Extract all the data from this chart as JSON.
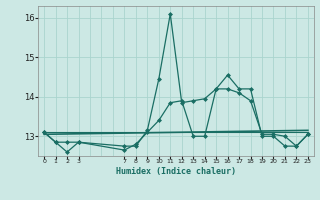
{
  "xlabel": "Humidex (Indice chaleur)",
  "background_color": "#cce8e4",
  "grid_color": "#aad4ce",
  "line_color": "#1a6e64",
  "ylim": [
    12.5,
    16.3
  ],
  "xlim": [
    -0.5,
    23.5
  ],
  "yticks": [
    13,
    14,
    15,
    16
  ],
  "xtick_positions": [
    0,
    1,
    2,
    3,
    7,
    8,
    9,
    10,
    11,
    12,
    13,
    14,
    15,
    16,
    17,
    18,
    19,
    20,
    21,
    22,
    23
  ],
  "xtick_labels": [
    "0",
    "1",
    "2",
    "3",
    "7",
    "8",
    "9",
    "10",
    "11",
    "12",
    "13",
    "14",
    "15",
    "16",
    "17",
    "18",
    "19",
    "20",
    "21",
    "22",
    "23"
  ],
  "series": [
    {
      "x": [
        0,
        1,
        2,
        3,
        7,
        8,
        9,
        10,
        11,
        12,
        13,
        14,
        15,
        16,
        17,
        18,
        19,
        20,
        21,
        22,
        23
      ],
      "y": [
        13.1,
        12.85,
        12.85,
        12.85,
        12.75,
        12.75,
        13.15,
        14.45,
        16.1,
        13.85,
        13.9,
        13.95,
        14.2,
        14.55,
        14.2,
        14.2,
        13.0,
        13.0,
        12.75,
        12.75,
        13.05
      ],
      "marker": "D",
      "markersize": 2.0,
      "linewidth": 0.9
    },
    {
      "x": [
        0,
        1,
        2,
        3,
        7,
        8,
        9,
        10,
        11,
        12,
        13,
        14,
        15,
        16,
        17,
        18,
        19,
        20,
        21,
        22,
        23
      ],
      "y": [
        13.1,
        12.85,
        12.6,
        12.85,
        12.65,
        12.8,
        13.1,
        13.4,
        13.85,
        13.9,
        13.0,
        13.0,
        14.2,
        14.2,
        14.1,
        13.9,
        13.05,
        13.05,
        13.0,
        12.75,
        13.05
      ],
      "marker": "D",
      "markersize": 2.0,
      "linewidth": 0.9
    },
    {
      "x": [
        0,
        23
      ],
      "y": [
        13.05,
        13.15
      ],
      "marker": null,
      "linewidth": 1.2
    },
    {
      "x": [
        0,
        23
      ],
      "y": [
        13.1,
        13.1
      ],
      "marker": null,
      "linewidth": 0.8
    }
  ]
}
